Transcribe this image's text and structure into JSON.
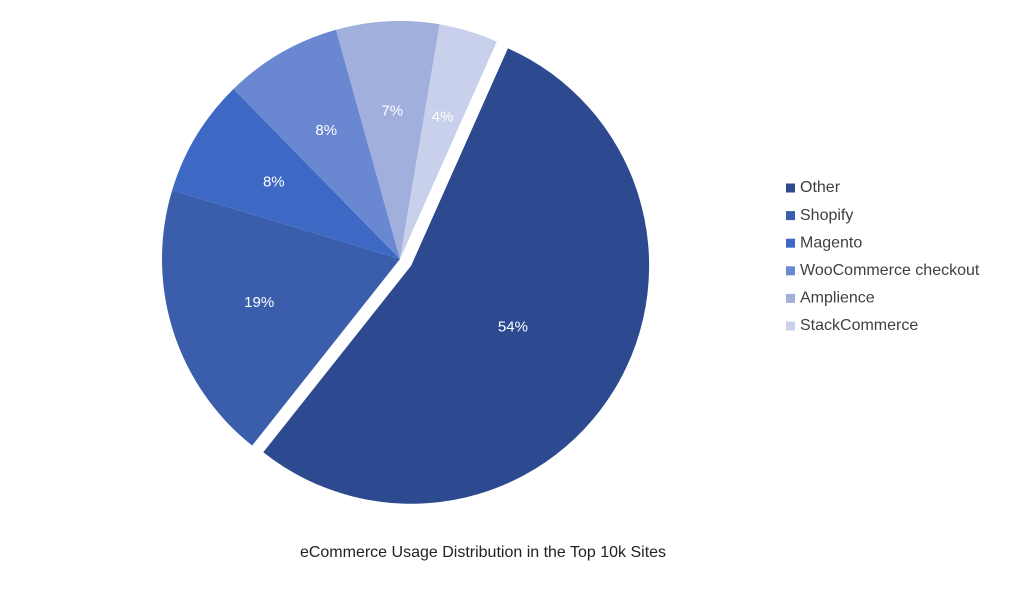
{
  "chart_data": {
    "type": "pie",
    "title": "eCommerce Usage Distribution in the Top 10k Sites",
    "categories": [
      "Other",
      "Shopify",
      "Magento",
      "WooCommerce checkout",
      "Amplience",
      "StackCommerce"
    ],
    "values": [
      54,
      19,
      8,
      8,
      7,
      4
    ],
    "value_labels": [
      "54%",
      "19%",
      "8%",
      "8%",
      "7%",
      "4%"
    ],
    "colors": [
      "#2d4a90",
      "#3a5eac",
      "#3d69c4",
      "#6a88d2",
      "#a1afdc",
      "#c9d0ec"
    ],
    "legend": "right"
  }
}
